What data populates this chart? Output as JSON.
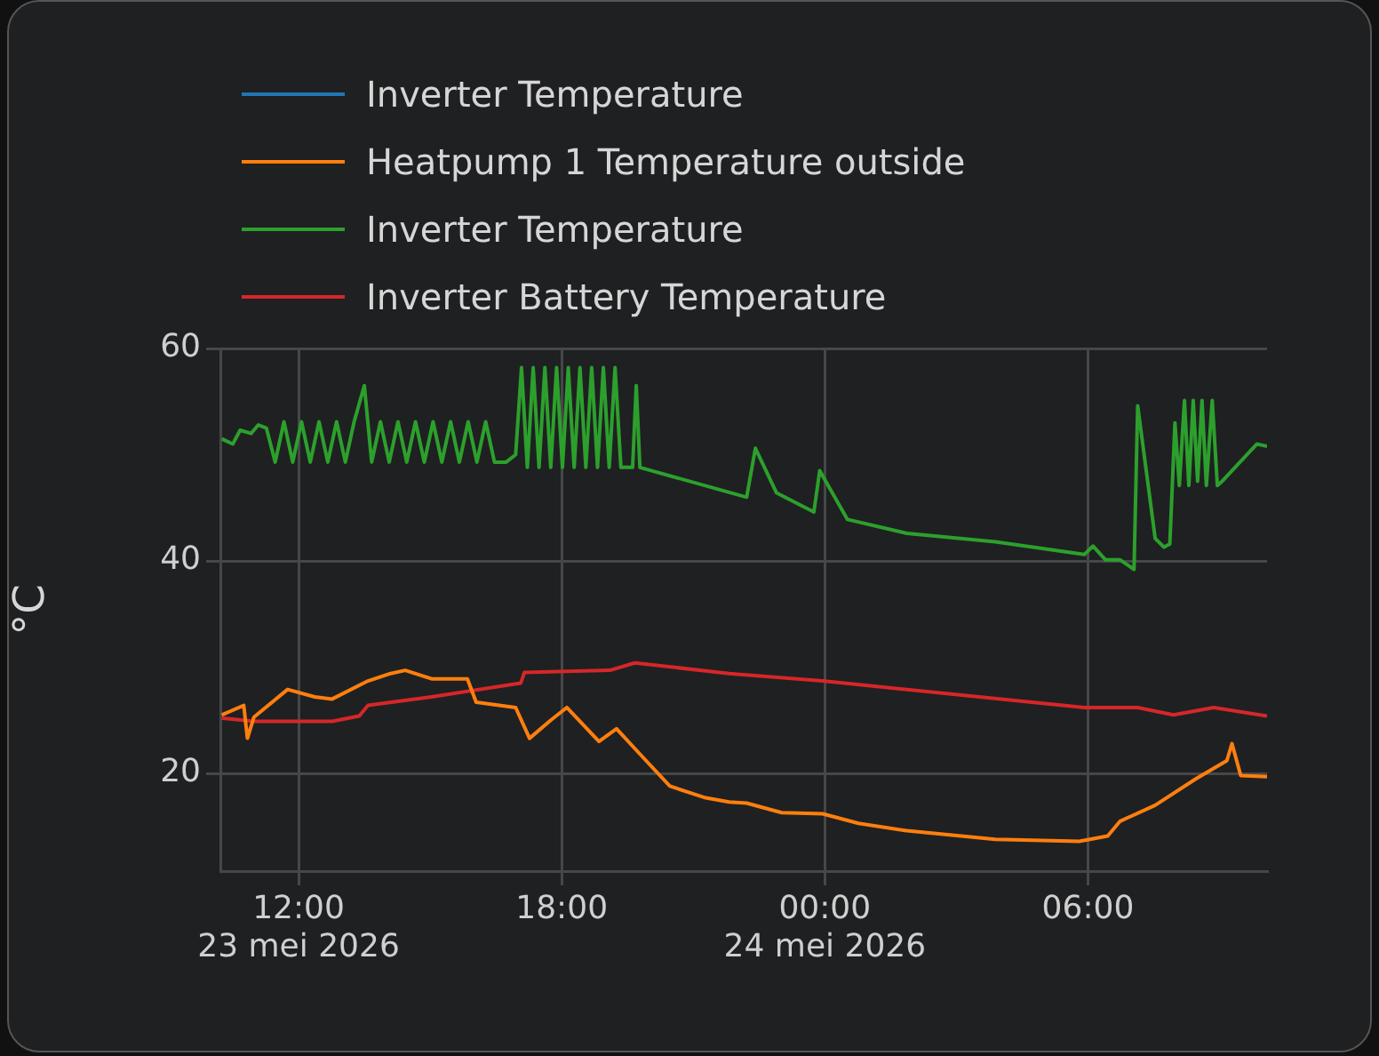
{
  "chart_data": {
    "type": "line",
    "ylabel": "°C",
    "legend": "top left",
    "grid": true,
    "marker": "none",
    "line_style": "solid",
    "xlim": [
      "2026-05-23T10:13",
      "2026-05-24T10:05"
    ],
    "xticks": [
      {
        "value": "2026-05-23T12:00",
        "label": "12:00\n23 mei 2026"
      },
      {
        "value": "2026-05-23T18:00",
        "label": "18:00"
      },
      {
        "value": "2026-05-24T00:00",
        "label": "00:00\n24 mei 2026"
      },
      {
        "value": "2026-05-24T06:00",
        "label": "06:00"
      }
    ],
    "ylim": [
      10.8,
      60
    ],
    "yticks": [
      20,
      40,
      60
    ],
    "series": [
      {
        "name": "Inverter Temperature",
        "color": "#1f77b4"
      },
      {
        "name": "Heatpump 1 Temperature outside",
        "color": "#ff7f0e",
        "x": [
          "2026-05-23T10:15",
          "2026-05-23T10:45",
          "2026-05-23T10:50",
          "2026-05-23T10:59",
          "2026-05-23T11:45",
          "2026-05-23T12:22",
          "2026-05-23T12:46",
          "2026-05-23T13:35",
          "2026-05-23T14:06",
          "2026-05-23T14:26",
          "2026-05-23T15:02",
          "2026-05-23T15:51",
          "2026-05-23T16:03",
          "2026-05-23T16:57",
          "2026-05-23T17:16",
          "2026-05-23T17:45",
          "2026-05-23T18:07",
          "2026-05-23T18:51",
          "2026-05-23T19:15",
          "2026-05-23T19:54",
          "2026-05-23T20:28",
          "2026-05-23T21:17",
          "2026-05-23T21:49",
          "2026-05-23T22:13",
          "2026-05-23T23:01",
          "2026-05-23T23:57",
          "2026-05-24T00:46",
          "2026-05-24T01:52",
          "2026-05-24T03:53",
          "2026-05-24T05:48",
          "2026-05-24T06:27",
          "2026-05-24T06:44",
          "2026-05-24T07:32",
          "2026-05-24T08:28",
          "2026-05-24T09:10",
          "2026-05-24T09:17",
          "2026-05-24T09:29",
          "2026-05-24T10:05"
        ],
        "values": [
          25.5,
          26.4,
          23.3,
          25.3,
          27.9,
          27.2,
          27.0,
          28.7,
          29.4,
          29.7,
          28.9,
          28.9,
          26.7,
          26.2,
          23.3,
          25.0,
          26.2,
          23.0,
          24.2,
          21.3,
          18.8,
          17.7,
          17.3,
          17.2,
          16.3,
          16.2,
          15.3,
          14.6,
          13.8,
          13.6,
          14.1,
          15.5,
          17.0,
          19.5,
          21.2,
          22.8,
          19.8,
          19.7
        ]
      },
      {
        "name": "Inverter Temperature",
        "color": "#2ca02c",
        "x": [
          "2026-05-23T10:15",
          "2026-05-23T10:30",
          "2026-05-23T10:40",
          "2026-05-23T10:55",
          "2026-05-23T11:05",
          "2026-05-23T11:16",
          "2026-05-23T11:28",
          "2026-05-23T11:40",
          "2026-05-23T11:52",
          "2026-05-23T12:04",
          "2026-05-23T12:16",
          "2026-05-23T12:28",
          "2026-05-23T12:40",
          "2026-05-23T12:52",
          "2026-05-23T13:04",
          "2026-05-23T13:16",
          "2026-05-23T13:30",
          "2026-05-23T13:40",
          "2026-05-23T13:52",
          "2026-05-23T14:04",
          "2026-05-23T14:16",
          "2026-05-23T14:28",
          "2026-05-23T14:40",
          "2026-05-23T14:52",
          "2026-05-23T15:04",
          "2026-05-23T15:16",
          "2026-05-23T15:28",
          "2026-05-23T15:40",
          "2026-05-23T15:52",
          "2026-05-23T16:04",
          "2026-05-23T16:16",
          "2026-05-23T16:28",
          "2026-05-23T16:44",
          "2026-05-23T16:57",
          "2026-05-23T17:05",
          "2026-05-23T17:13",
          "2026-05-23T17:21",
          "2026-05-23T17:29",
          "2026-05-23T17:37",
          "2026-05-23T17:45",
          "2026-05-23T17:53",
          "2026-05-23T18:01",
          "2026-05-23T18:09",
          "2026-05-23T18:17",
          "2026-05-23T18:25",
          "2026-05-23T18:33",
          "2026-05-23T18:41",
          "2026-05-23T18:49",
          "2026-05-23T18:57",
          "2026-05-23T19:05",
          "2026-05-23T19:13",
          "2026-05-23T19:21",
          "2026-05-23T19:29",
          "2026-05-23T19:37",
          "2026-05-23T19:42",
          "2026-05-23T19:47",
          "2026-05-23T22:13",
          "2026-05-23T22:25",
          "2026-05-23T22:54",
          "2026-05-23T23:45",
          "2026-05-23T23:53",
          "2026-05-24T00:31",
          "2026-05-24T01:52",
          "2026-05-24T03:53",
          "2026-05-24T05:55",
          "2026-05-24T06:07",
          "2026-05-24T06:24",
          "2026-05-24T06:44",
          "2026-05-24T07:03",
          "2026-05-24T07:08",
          "2026-05-24T07:32",
          "2026-05-24T07:44",
          "2026-05-24T07:52",
          "2026-05-24T07:59",
          "2026-05-24T08:05",
          "2026-05-24T08:12",
          "2026-05-24T08:18",
          "2026-05-24T08:24",
          "2026-05-24T08:30",
          "2026-05-24T08:36",
          "2026-05-24T08:42",
          "2026-05-24T08:50",
          "2026-05-24T08:57",
          "2026-05-24T09:05",
          "2026-05-24T09:51",
          "2026-05-24T10:05"
        ],
        "values": [
          51.5,
          51.0,
          52.3,
          52.0,
          52.8,
          52.5,
          49.3,
          53.1,
          49.3,
          53.1,
          49.3,
          53.1,
          49.3,
          53.1,
          49.3,
          53.1,
          56.5,
          49.3,
          53.1,
          49.3,
          53.1,
          49.3,
          53.1,
          49.3,
          53.1,
          49.3,
          53.1,
          49.3,
          53.1,
          49.3,
          53.1,
          49.3,
          49.3,
          50.0,
          58.2,
          48.8,
          58.2,
          48.8,
          58.2,
          48.8,
          58.2,
          48.8,
          58.2,
          48.8,
          58.2,
          48.8,
          58.2,
          48.8,
          58.2,
          48.8,
          58.2,
          48.8,
          48.8,
          48.8,
          56.5,
          48.8,
          46.0,
          50.6,
          46.4,
          44.6,
          48.5,
          43.9,
          42.6,
          41.8,
          40.6,
          41.4,
          40.1,
          40.1,
          39.2,
          54.6,
          42.1,
          41.3,
          41.6,
          53.0,
          47.1,
          55.1,
          47.1,
          55.1,
          47.5,
          55.1,
          47.1,
          55.1,
          47.1,
          47.6,
          51.0,
          50.8
        ]
      },
      {
        "name": "Inverter Battery Temperature",
        "color": "#d62728",
        "x": [
          "2026-05-23T10:15",
          "2026-05-23T10:59",
          "2026-05-23T12:46",
          "2026-05-23T13:23",
          "2026-05-23T13:35",
          "2026-05-23T15:02",
          "2026-05-23T17:04",
          "2026-05-23T17:09",
          "2026-05-23T19:06",
          "2026-05-23T19:40",
          "2026-05-23T21:49",
          "2026-05-23T23:57",
          "2026-05-24T05:55",
          "2026-05-24T07:08",
          "2026-05-24T07:57",
          "2026-05-24T08:52",
          "2026-05-24T10:05"
        ],
        "values": [
          25.2,
          24.9,
          24.9,
          25.4,
          26.4,
          27.2,
          28.5,
          29.5,
          29.7,
          30.4,
          29.4,
          28.7,
          26.2,
          26.2,
          25.5,
          26.2,
          25.4
        ]
      }
    ]
  }
}
